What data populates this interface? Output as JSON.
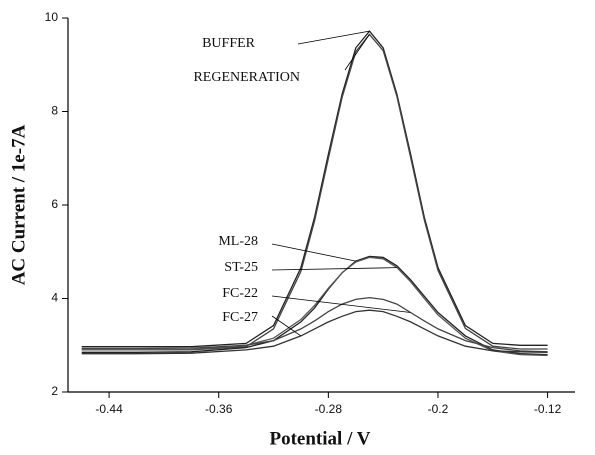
{
  "chart_data": {
    "type": "line",
    "x_label": "Potential / V",
    "y_label": "AC Current / 1e-7A",
    "x": [
      -0.46,
      -0.42,
      -0.38,
      -0.34,
      -0.32,
      -0.3,
      -0.29,
      -0.28,
      -0.27,
      -0.26,
      -0.25,
      -0.24,
      -0.23,
      -0.22,
      -0.21,
      -0.2,
      -0.18,
      -0.16,
      -0.14,
      -0.12
    ],
    "series": [
      {
        "name": "BUFFER",
        "color": "#222222",
        "values": [
          2.97,
          2.97,
          2.97,
          3.04,
          3.42,
          4.66,
          5.74,
          7.09,
          8.37,
          9.36,
          9.72,
          9.36,
          8.37,
          7.09,
          5.74,
          4.66,
          3.42,
          3.04,
          3.0,
          3.0
        ]
      },
      {
        "name": "REGENERATION",
        "color": "#444444",
        "values": [
          2.9,
          2.9,
          2.9,
          2.97,
          3.35,
          4.58,
          5.66,
          7.0,
          8.3,
          9.28,
          9.65,
          9.3,
          8.32,
          7.02,
          5.68,
          4.6,
          3.36,
          2.98,
          2.92,
          2.92
        ]
      },
      {
        "name": "ML-28",
        "color": "#222222",
        "values": [
          2.85,
          2.85,
          2.86,
          2.95,
          3.1,
          3.5,
          3.8,
          4.2,
          4.55,
          4.8,
          4.9,
          4.88,
          4.7,
          4.4,
          4.05,
          3.7,
          3.2,
          2.9,
          2.82,
          2.8
        ]
      },
      {
        "name": "ST-25",
        "color": "#555555",
        "values": [
          2.9,
          2.9,
          2.91,
          3.0,
          3.15,
          3.55,
          3.85,
          4.22,
          4.55,
          4.78,
          4.88,
          4.85,
          4.66,
          4.36,
          4.0,
          3.65,
          3.15,
          2.88,
          2.8,
          2.78
        ]
      },
      {
        "name": "FC-22",
        "color": "#444444",
        "values": [
          2.93,
          2.93,
          2.94,
          3.0,
          3.1,
          3.35,
          3.52,
          3.72,
          3.88,
          3.98,
          4.02,
          3.98,
          3.88,
          3.7,
          3.52,
          3.35,
          3.1,
          2.95,
          2.88,
          2.86
        ]
      },
      {
        "name": "FC-27",
        "color": "#333333",
        "values": [
          2.82,
          2.82,
          2.83,
          2.9,
          2.98,
          3.2,
          3.35,
          3.5,
          3.62,
          3.72,
          3.75,
          3.72,
          3.62,
          3.5,
          3.35,
          3.2,
          2.98,
          2.88,
          2.86,
          2.85
        ]
      }
    ],
    "xlim": [
      -0.47,
      -0.1
    ],
    "xticks": [
      -0.44,
      -0.36,
      -0.28,
      -0.2,
      -0.12
    ],
    "ylim": [
      2,
      10
    ],
    "yticks": [
      2,
      4,
      6,
      8,
      10
    ],
    "grid": false
  }
}
